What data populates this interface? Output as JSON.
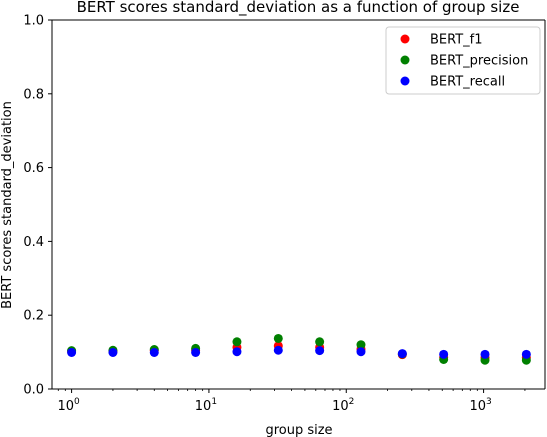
{
  "chart_data": {
    "type": "scatter",
    "title": "BERT scores standard_deviation as a function of group size",
    "xlabel": "group size",
    "ylabel": "BERT scores standard_deviation",
    "xscale": "log",
    "xlim": [
      0.72,
      2800
    ],
    "ylim": [
      0.0,
      1.0
    ],
    "yticks": [
      "0.0",
      "0.2",
      "0.4",
      "0.6",
      "0.8",
      "1.0"
    ],
    "xticks": [
      {
        "base": "10",
        "exp": "0"
      },
      {
        "base": "10",
        "exp": "1"
      },
      {
        "base": "10",
        "exp": "2"
      },
      {
        "base": "10",
        "exp": "3"
      }
    ],
    "legend_position": "top-right",
    "x": [
      1,
      2,
      4,
      8,
      16,
      32,
      64,
      128,
      256,
      512,
      1024,
      2048
    ],
    "series": [
      {
        "name": "BERT_f1",
        "color": "#ff0000",
        "values": [
          0.102,
          0.102,
          0.104,
          0.105,
          0.113,
          0.117,
          0.113,
          0.108,
          0.093,
          0.086,
          0.085,
          0.085
        ]
      },
      {
        "name": "BERT_precision",
        "color": "#008000",
        "values": [
          0.104,
          0.105,
          0.107,
          0.11,
          0.128,
          0.137,
          0.128,
          0.12,
          0.095,
          0.08,
          0.078,
          0.078
        ]
      },
      {
        "name": "BERT_recall",
        "color": "#0000ff",
        "values": [
          0.099,
          0.099,
          0.099,
          0.099,
          0.101,
          0.105,
          0.104,
          0.101,
          0.096,
          0.094,
          0.094,
          0.094
        ]
      }
    ]
  }
}
